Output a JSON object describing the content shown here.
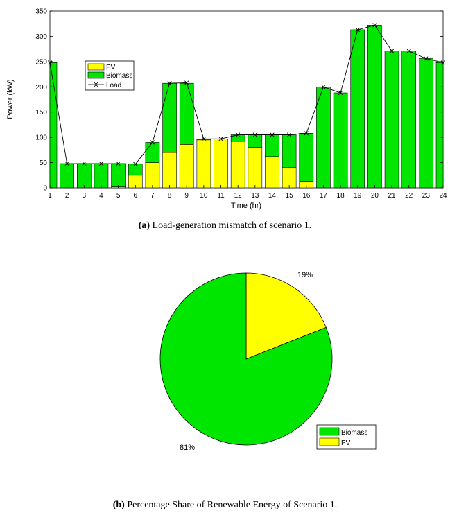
{
  "chart_data": [
    {
      "type": "bar",
      "stacked": true,
      "xlabel": "Time (hr)",
      "ylabel": "Power (kW)",
      "ylim": [
        0,
        350
      ],
      "yticks": [
        0,
        50,
        100,
        150,
        200,
        250,
        300,
        350
      ],
      "categories": [
        "1",
        "2",
        "3",
        "4",
        "5",
        "6",
        "7",
        "8",
        "9",
        "10",
        "11",
        "12",
        "13",
        "14",
        "15",
        "16",
        "17",
        "18",
        "19",
        "20",
        "21",
        "22",
        "23",
        "24"
      ],
      "series": [
        {
          "name": "PV",
          "color": "#ffff00",
          "values": [
            0,
            0,
            0,
            0,
            2,
            25,
            50,
            70,
            86,
            95,
            97,
            92,
            80,
            62,
            40,
            13,
            0,
            0,
            0,
            0,
            0,
            0,
            0,
            0
          ]
        },
        {
          "name": "Biomass",
          "color": "#00e600",
          "values": [
            248,
            48,
            48,
            48,
            46,
            22,
            40,
            137,
            121,
            2,
            0,
            13,
            25,
            43,
            65,
            95,
            200,
            188,
            313,
            322,
            271,
            271,
            256,
            248
          ]
        },
        {
          "name": "Load",
          "type": "line",
          "color": "#000000",
          "values": [
            248,
            48,
            48,
            48,
            48,
            47,
            90,
            207,
            208,
            97,
            97,
            105,
            105,
            105,
            105,
            108,
            200,
            188,
            313,
            322,
            271,
            271,
            256,
            248
          ]
        }
      ],
      "legend_position": "upper-left",
      "caption_prefix": "(a)",
      "caption_text": "Load-generation mismatch of scenario 1."
    },
    {
      "type": "pie",
      "slices": [
        {
          "name": "PV",
          "value": 19,
          "label": "19%",
          "color": "#ffff00"
        },
        {
          "name": "Biomass",
          "value": 81,
          "label": "81%",
          "color": "#00e600"
        }
      ],
      "legend": [
        "Biomass",
        "PV"
      ],
      "legend_position": "lower-right",
      "caption_prefix": "(b)",
      "caption_text": "Percentage Share of Renewable Energy of Scenario 1."
    }
  ]
}
